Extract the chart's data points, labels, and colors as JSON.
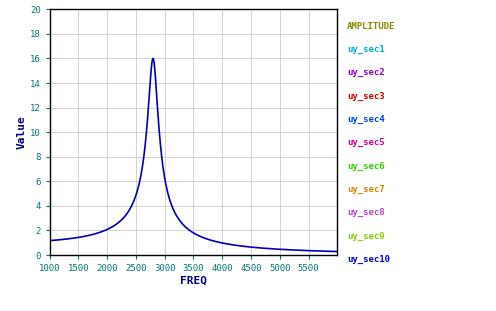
{
  "xlabel": "FREQ",
  "ylabel": "Value",
  "xlim": [
    1000,
    6000
  ],
  "ylim": [
    0,
    20
  ],
  "xticks": [
    1000,
    1500,
    2000,
    2500,
    3000,
    3500,
    4000,
    4500,
    5000,
    5500
  ],
  "xtick_labels": [
    "1000",
    "1500",
    "2000",
    "2500",
    "3000",
    "3500",
    "4000",
    "4500",
    "5000",
    "5500"
  ],
  "yticks": [
    0,
    2,
    4,
    6,
    8,
    10,
    12,
    14,
    16,
    18,
    20
  ],
  "peak_freq": 2800,
  "peak_amp": 16.0,
  "damping": 0.032,
  "line_color": "#0000bb",
  "bg_color": "#ffffff",
  "grid_color": "#cccccc",
  "legend_title": "AMPLITUDE",
  "legend_title_color": "#888800",
  "legend_items": [
    {
      "label": "uy_sec1",
      "color": "#00aacc"
    },
    {
      "label": "uy_sec2",
      "color": "#8800cc"
    },
    {
      "label": "uy_sec3",
      "color": "#cc0000"
    },
    {
      "label": "uy_sec4",
      "color": "#0044cc"
    },
    {
      "label": "uy_sec5",
      "color": "#cc0099"
    },
    {
      "label": "uy_sec6",
      "color": "#33cc00"
    },
    {
      "label": "uy_sec7",
      "color": "#cc8800"
    },
    {
      "label": "uy_sec8",
      "color": "#bb44bb"
    },
    {
      "label": "uy_sec9",
      "color": "#88cc00"
    },
    {
      "label": "uy_sec10",
      "color": "#0000cc"
    }
  ],
  "axis_label_color": "#000088",
  "tick_label_color": "#007777",
  "figwidth": 4.96,
  "figheight": 3.11,
  "dpi": 100
}
